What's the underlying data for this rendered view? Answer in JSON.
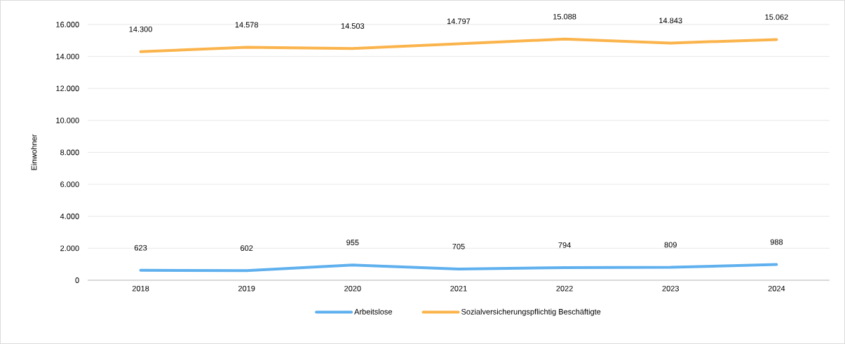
{
  "chart_data": {
    "type": "line",
    "ylabel": "Einwohner",
    "categories": [
      "2018",
      "2019",
      "2020",
      "2021",
      "2022",
      "2023",
      "2024"
    ],
    "series": [
      {
        "name": "Arbeitslose",
        "color": "#5fb0ee",
        "values": [
          623,
          602,
          955,
          705,
          794,
          809,
          988
        ],
        "value_labels": [
          "623",
          "602",
          "955",
          "705",
          "794",
          "809",
          "988"
        ]
      },
      {
        "name": "Sozialversicherungspflichtig Beschäftigte",
        "color": "#fbb44c",
        "values": [
          14300,
          14578,
          14503,
          14797,
          15088,
          14843,
          15062
        ],
        "value_labels": [
          "14.300",
          "14.578",
          "14.503",
          "14.797",
          "15.088",
          "14.843",
          "15.062"
        ]
      }
    ],
    "ylim": [
      0,
      16000
    ],
    "yticks": [
      {
        "value": 0,
        "label": "0"
      },
      {
        "value": 2000,
        "label": "2.000"
      },
      {
        "value": 4000,
        "label": "4.000"
      },
      {
        "value": 6000,
        "label": "6.000"
      },
      {
        "value": 8000,
        "label": "8.000"
      },
      {
        "value": 10000,
        "label": "10.000"
      },
      {
        "value": 12000,
        "label": "12.000"
      },
      {
        "value": 14000,
        "label": "14.000"
      },
      {
        "value": 16000,
        "label": "16.000"
      }
    ],
    "grid": "y",
    "legend": "bottom",
    "marker": "none",
    "line_style": "solid"
  }
}
